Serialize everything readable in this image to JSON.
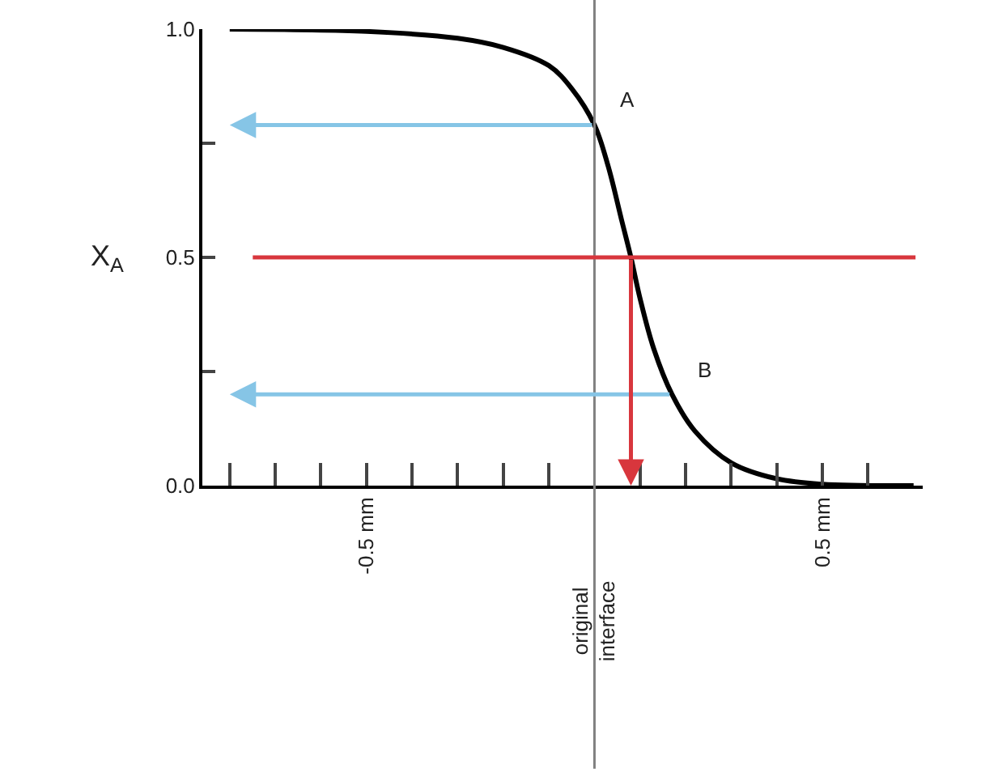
{
  "chart_data": {
    "type": "line",
    "ylabel": "X$_{A}$",
    "series": [
      {
        "color": "#000000",
        "x": [
          -0.8,
          -0.5,
          -0.3,
          -0.2,
          -0.1,
          -0.05,
          0,
          0.03,
          0.06,
          0.08,
          0.1,
          0.13,
          0.17,
          0.22,
          0.3,
          0.4,
          0.5,
          0.7
        ],
        "values": [
          1.0,
          0.995,
          0.98,
          0.96,
          0.92,
          0.87,
          0.79,
          0.7,
          0.58,
          0.5,
          0.41,
          0.3,
          0.2,
          0.12,
          0.05,
          0.015,
          0.003,
          0.0
        ]
      }
    ],
    "xlim": [
      -0.86,
      0.72
    ],
    "xticks": [
      {
        "value": -0.8,
        "label": null
      },
      {
        "value": -0.7,
        "label": null
      },
      {
        "value": -0.6,
        "label": null
      },
      {
        "value": -0.5,
        "label": "-0.5 mm"
      },
      {
        "value": -0.4,
        "label": null
      },
      {
        "value": -0.3,
        "label": null
      },
      {
        "value": -0.2,
        "label": null
      },
      {
        "value": -0.1,
        "label": null
      },
      {
        "value": 0.1,
        "label": null
      },
      {
        "value": 0.2,
        "label": null
      },
      {
        "value": 0.3,
        "label": null
      },
      {
        "value": 0.4,
        "label": null
      },
      {
        "value": 0.5,
        "label": "0.5 mm"
      },
      {
        "value": 0.6,
        "label": null
      }
    ],
    "ylim": [
      0,
      1.0
    ],
    "yticks": [
      {
        "value": 0,
        "label": "0.0"
      },
      {
        "value": 0.25,
        "label": null
      },
      {
        "value": 0.5,
        "label": "0.5"
      },
      {
        "value": 0.75,
        "label": null
      },
      {
        "value": 1.0,
        "label": "1.0"
      }
    ],
    "ref_lines": [
      {
        "axis": "x",
        "value": 0,
        "label": "original interface",
        "color": "#808080"
      },
      {
        "axis": "y",
        "value": 0.5,
        "color": "#d8363d"
      }
    ],
    "annotations": [
      {
        "text": "A",
        "x": 0,
        "y": 0.79
      },
      {
        "text": "B",
        "x": 0.17,
        "y": 0.2
      }
    ],
    "tick_labels": "xy"
  }
}
